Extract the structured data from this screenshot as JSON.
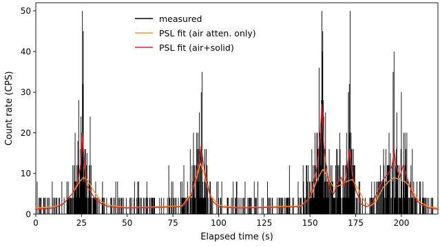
{
  "chart_data": {
    "type": "line",
    "title": "",
    "xlabel": "Elapsed time (s)",
    "ylabel": "Count rate (CPS)",
    "xlim": [
      0,
      220
    ],
    "ylim": [
      0,
      52
    ],
    "xticks": [
      0,
      25,
      50,
      75,
      100,
      125,
      150,
      175,
      200
    ],
    "yticks": [
      0,
      10,
      20,
      30,
      40,
      50
    ],
    "grid": false,
    "legend_position": "top-center",
    "series": [
      {
        "name": "measured",
        "color": "#000000",
        "style": "bars",
        "note_sampling": "0.25",
        "peaks": [
          {
            "x": 25.5,
            "y": 50
          },
          {
            "x": 26.0,
            "y": 45
          },
          {
            "x": 21.5,
            "y": 20
          },
          {
            "x": 23.0,
            "y": 18
          },
          {
            "x": 28.0,
            "y": 15
          },
          {
            "x": 89.5,
            "y": 25
          },
          {
            "x": 90.5,
            "y": 30
          },
          {
            "x": 91.0,
            "y": 35
          },
          {
            "x": 88.0,
            "y": 20
          },
          {
            "x": 156.5,
            "y": 50
          },
          {
            "x": 157.0,
            "y": 45
          },
          {
            "x": 158.5,
            "y": 25
          },
          {
            "x": 155.5,
            "y": 20
          },
          {
            "x": 172.0,
            "y": 50
          },
          {
            "x": 171.0,
            "y": 30
          },
          {
            "x": 170.0,
            "y": 20
          },
          {
            "x": 196.0,
            "y": 40
          },
          {
            "x": 195.5,
            "y": 35
          },
          {
            "x": 200.0,
            "y": 30
          },
          {
            "x": 197.5,
            "y": 25
          },
          {
            "x": 202.0,
            "y": 20
          },
          {
            "x": 194.0,
            "y": 15
          }
        ]
      },
      {
        "name": "PSL fit (air atten. only)",
        "color": "#ff9a1f",
        "x": [
          0,
          10,
          15,
          20,
          24,
          26,
          28,
          32,
          36,
          40,
          50,
          80,
          85,
          88,
          90,
          92,
          95,
          100,
          110,
          145,
          150,
          154,
          157,
          160,
          163,
          166,
          170,
          173,
          176,
          180,
          183,
          186,
          190,
          193,
          196,
          199,
          202,
          205,
          210,
          215,
          220
        ],
        "y": [
          1.5,
          1.8,
          2.5,
          5.0,
          8.0,
          9.0,
          8.5,
          5.5,
          3.0,
          2.2,
          1.6,
          2.0,
          5.0,
          9.0,
          12.5,
          10.0,
          5.0,
          2.2,
          1.6,
          2.0,
          4.0,
          8.5,
          11.0,
          9.0,
          6.5,
          7.0,
          8.0,
          8.5,
          6.5,
          3.0,
          2.0,
          3.0,
          6.5,
          8.0,
          9.0,
          8.5,
          8.0,
          6.5,
          3.0,
          1.8,
          1.5
        ]
      },
      {
        "name": "PSL fit (air+solid)",
        "color": "#e32222",
        "x": [
          0,
          10,
          15,
          20,
          23,
          24.5,
          25.5,
          26.5,
          28,
          32,
          36,
          40,
          50,
          80,
          85,
          88,
          89.5,
          90.5,
          91.5,
          93,
          96,
          100,
          110,
          145,
          150,
          154,
          155.5,
          156.5,
          157.5,
          159,
          161,
          163,
          165,
          167,
          169,
          170.5,
          171.5,
          173,
          175,
          178,
          181,
          184,
          187,
          190,
          193,
          195,
          196,
          197,
          199,
          201,
          203,
          206,
          210,
          215,
          220
        ],
        "y": [
          1.2,
          1.5,
          2.5,
          5.0,
          8.0,
          12.0,
          20.0,
          12.0,
          7.0,
          4.0,
          2.5,
          1.8,
          1.5,
          1.8,
          4.5,
          10.0,
          13.5,
          17.0,
          13.0,
          9.0,
          3.5,
          1.8,
          1.5,
          1.8,
          4.0,
          12.0,
          19.0,
          27.0,
          17.0,
          11.0,
          6.0,
          5.0,
          7.5,
          9.0,
          7.0,
          12.0,
          16.0,
          10.0,
          6.0,
          2.5,
          1.8,
          2.5,
          5.5,
          8.5,
          10.0,
          12.0,
          16.0,
          12.0,
          9.0,
          12.0,
          9.0,
          5.0,
          2.5,
          1.5,
          1.2
        ]
      }
    ]
  }
}
